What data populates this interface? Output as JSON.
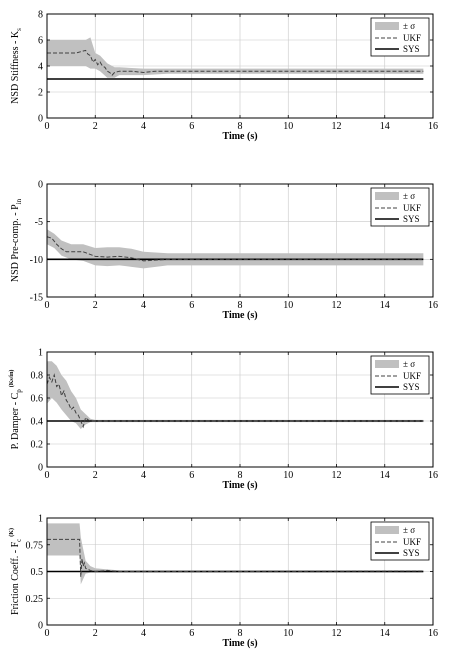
{
  "colors": {
    "band": "#c0c0c0",
    "ukf": "#404040",
    "sys": "#000000",
    "grid": "#c8c8c8"
  },
  "chart_data": [
    {
      "type": "line",
      "ylabel": "NSD Stiffness - K",
      "ylabel_sub": "s",
      "ylabel_unit": "",
      "xlabel": "Time (s)",
      "xlim": [
        0,
        16
      ],
      "ylim": [
        0,
        8
      ],
      "xticks": [
        "0",
        "2",
        "4",
        "6",
        "8",
        "10",
        "12",
        "14",
        "16"
      ],
      "yticks": [
        "0",
        "2",
        "4",
        "6",
        "8"
      ],
      "legend": {
        "band": "± σ",
        "ukf": "UKF",
        "sys": "SYS",
        "position": "top-right"
      },
      "series": [
        {
          "name": "UKF",
          "x": [
            0,
            1.2,
            1.6,
            1.7,
            1.8,
            1.9,
            2.0,
            2.1,
            2.2,
            2.3,
            2.4,
            2.5,
            2.6,
            2.7,
            2.8,
            3.0,
            3.5,
            4.0,
            4.5,
            5.0,
            8.0,
            12.0,
            15.6
          ],
          "y": [
            5.0,
            5.0,
            5.2,
            4.9,
            4.8,
            4.3,
            4.5,
            4.1,
            4.3,
            4.0,
            3.9,
            3.6,
            3.5,
            3.3,
            3.5,
            3.6,
            3.6,
            3.5,
            3.6,
            3.6,
            3.6,
            3.6,
            3.6
          ]
        },
        {
          "name": "SYS",
          "x": [
            0,
            15.6
          ],
          "y": [
            3.0,
            3.0
          ]
        },
        {
          "name": "± σ upper",
          "x": [
            0,
            1.6,
            1.8,
            2.0,
            2.2,
            2.5,
            2.8,
            3.0,
            4.0,
            5.0,
            15.6
          ],
          "y": [
            6.0,
            6.0,
            6.2,
            5.0,
            4.8,
            4.2,
            3.9,
            3.9,
            3.8,
            3.8,
            3.8
          ]
        },
        {
          "name": "± σ lower",
          "x": [
            0,
            1.6,
            1.8,
            2.0,
            2.2,
            2.5,
            2.8,
            3.0,
            4.0,
            5.0,
            15.6
          ],
          "y": [
            4.0,
            4.0,
            3.8,
            3.8,
            3.6,
            3.1,
            3.1,
            3.3,
            3.3,
            3.4,
            3.4
          ]
        }
      ]
    },
    {
      "type": "line",
      "ylabel": "NSD Pre-comp. - P",
      "ylabel_sub": "in",
      "ylabel_unit": "",
      "xlabel": "Time (s)",
      "xlim": [
        0,
        16
      ],
      "ylim": [
        -15,
        0
      ],
      "xticks": [
        "0",
        "2",
        "4",
        "6",
        "8",
        "10",
        "12",
        "14",
        "16"
      ],
      "yticks": [
        "-15",
        "-10",
        "-5",
        "0"
      ],
      "legend": {
        "band": "± σ",
        "ukf": "UKF",
        "sys": "SYS",
        "position": "top-right"
      },
      "series": [
        {
          "name": "UKF",
          "x": [
            0,
            0.2,
            0.4,
            0.6,
            0.8,
            1.0,
            1.5,
            2.0,
            2.5,
            3.0,
            3.5,
            4.0,
            4.5,
            5.0,
            8.0,
            12.0,
            15.6
          ],
          "y": [
            -7.0,
            -7.2,
            -8.0,
            -8.6,
            -9.0,
            -9.0,
            -9.0,
            -9.6,
            -9.7,
            -9.6,
            -9.8,
            -10.2,
            -10.1,
            -10.0,
            -10.0,
            -10.0,
            -10.0
          ]
        },
        {
          "name": "SYS",
          "x": [
            0,
            15.6
          ],
          "y": [
            -10.0,
            -10.0
          ]
        },
        {
          "name": "± σ upper",
          "x": [
            0,
            0.3,
            0.6,
            1.0,
            1.5,
            2.0,
            2.5,
            3.0,
            3.5,
            4.0,
            5.0,
            15.6
          ],
          "y": [
            -6.0,
            -6.6,
            -7.5,
            -8.0,
            -8.0,
            -8.5,
            -8.4,
            -8.4,
            -8.6,
            -9.0,
            -9.2,
            -9.2
          ]
        },
        {
          "name": "± σ lower",
          "x": [
            0,
            0.3,
            0.6,
            1.0,
            1.5,
            2.0,
            2.5,
            3.0,
            3.5,
            4.0,
            5.0,
            15.6
          ],
          "y": [
            -8.0,
            -8.5,
            -9.5,
            -10.0,
            -10.2,
            -10.8,
            -10.9,
            -10.8,
            -11.0,
            -11.2,
            -10.8,
            -10.8
          ]
        }
      ]
    },
    {
      "type": "line",
      "ylabel": "P. Damper - C",
      "ylabel_sub": "p",
      "ylabel_unit": "(Ks/in)",
      "xlabel": "Time (s)",
      "xlim": [
        0,
        16
      ],
      "ylim": [
        0,
        1
      ],
      "xticks": [
        "0",
        "2",
        "4",
        "6",
        "8",
        "10",
        "12",
        "14",
        "16"
      ],
      "yticks": [
        "0",
        "0.2",
        "0.4",
        "0.6",
        "0.8",
        "1"
      ],
      "legend": {
        "band": "± σ",
        "ukf": "UKF",
        "sys": "SYS",
        "position": "top-right"
      },
      "series": [
        {
          "name": "UKF",
          "x": [
            0,
            0.1,
            0.2,
            0.3,
            0.4,
            0.5,
            0.6,
            0.7,
            0.8,
            0.9,
            1.0,
            1.1,
            1.2,
            1.3,
            1.4,
            1.5,
            1.6,
            1.7,
            1.8,
            2.0,
            3.0,
            8.0,
            15.6
          ],
          "y": [
            0.72,
            0.78,
            0.74,
            0.8,
            0.7,
            0.72,
            0.62,
            0.66,
            0.58,
            0.55,
            0.5,
            0.52,
            0.47,
            0.45,
            0.4,
            0.35,
            0.43,
            0.41,
            0.4,
            0.4,
            0.4,
            0.4,
            0.4
          ]
        },
        {
          "name": "SYS",
          "x": [
            0,
            15.6
          ],
          "y": [
            0.4,
            0.4
          ]
        },
        {
          "name": "± σ upper",
          "x": [
            0,
            0.2,
            0.4,
            0.6,
            0.8,
            1.0,
            1.2,
            1.4,
            1.6,
            1.8,
            2.0,
            15.6
          ],
          "y": [
            0.92,
            0.92,
            0.88,
            0.8,
            0.75,
            0.66,
            0.6,
            0.5,
            0.46,
            0.42,
            0.41,
            0.41
          ]
        },
        {
          "name": "± σ lower",
          "x": [
            0,
            0.2,
            0.4,
            0.6,
            0.8,
            1.0,
            1.2,
            1.4,
            1.6,
            1.8,
            2.0,
            15.6
          ],
          "y": [
            0.55,
            0.6,
            0.56,
            0.5,
            0.45,
            0.4,
            0.38,
            0.33,
            0.37,
            0.39,
            0.39,
            0.39
          ]
        }
      ]
    },
    {
      "type": "line",
      "ylabel": "Friction Coeff. - F",
      "ylabel_sub": "c",
      "ylabel_unit": "(K)",
      "xlabel": "Time (s)",
      "xlim": [
        0,
        16
      ],
      "ylim": [
        0,
        1
      ],
      "xticks": [
        "0",
        "2",
        "4",
        "6",
        "8",
        "10",
        "12",
        "14",
        "16"
      ],
      "yticks": [
        "0",
        "0.25",
        "0.5",
        "0.75",
        "1"
      ],
      "legend": {
        "band": "± σ",
        "ukf": "UKF",
        "sys": "SYS",
        "position": "top-right"
      },
      "series": [
        {
          "name": "UKF",
          "x": [
            0,
            1.35,
            1.4,
            1.45,
            1.5,
            1.55,
            1.6,
            1.7,
            1.8,
            2.0,
            2.5,
            3.0,
            5.0,
            8.0,
            15.6
          ],
          "y": [
            0.8,
            0.8,
            0.45,
            0.62,
            0.55,
            0.58,
            0.53,
            0.52,
            0.51,
            0.5,
            0.51,
            0.5,
            0.5,
            0.5,
            0.505
          ]
        },
        {
          "name": "SYS",
          "x": [
            0,
            15.6
          ],
          "y": [
            0.5,
            0.5
          ]
        },
        {
          "name": "± σ upper",
          "x": [
            0,
            1.35,
            1.4,
            1.6,
            1.8,
            2.0,
            2.5,
            3.0,
            15.6
          ],
          "y": [
            0.95,
            0.95,
            0.82,
            0.6,
            0.55,
            0.53,
            0.52,
            0.51,
            0.51
          ]
        },
        {
          "name": "± σ lower",
          "x": [
            0,
            1.35,
            1.4,
            1.6,
            1.8,
            2.0,
            2.5,
            3.0,
            15.6
          ],
          "y": [
            0.65,
            0.65,
            0.38,
            0.48,
            0.49,
            0.49,
            0.49,
            0.49,
            0.49
          ]
        }
      ]
    }
  ]
}
